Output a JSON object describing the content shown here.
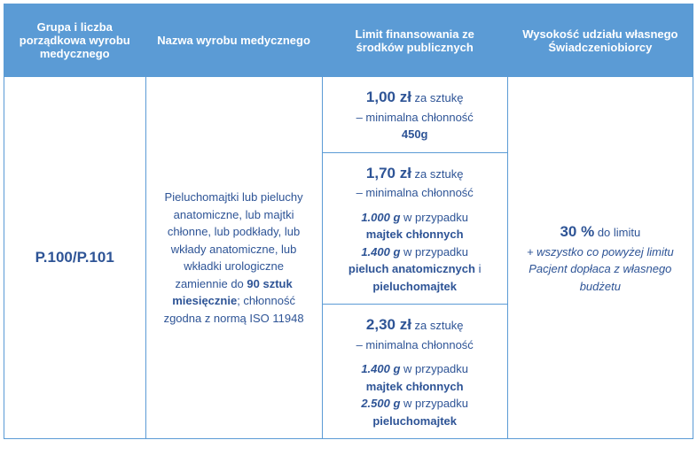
{
  "header": {
    "col1": "Grupa i liczba porządkowa wyrobu medycznego",
    "col2": "Nazwa wyrobu medycznego",
    "col3": "Limit finansowania ze środków publicznych",
    "col4": "Wysokość udziału własnego Świadczeniobiorcy"
  },
  "body": {
    "code": "P.100/P.101",
    "desc_pre": "Pieluchomajtki lub pieluchy anatomiczne, lub majtki chłonne, lub podkłady, lub wkłady anatomiczne, lub wkładki urologiczne zamiennie do ",
    "desc_bold": "90 sztuk miesięcznie",
    "desc_post": "; chłonność zgodna z normą ISO 11948",
    "limits": {
      "l1": {
        "price": "1,00 zł",
        "per": " za sztukę",
        "sub": "– minimalna chłonność",
        "weight": "450g"
      },
      "l2": {
        "price": "1,70 zł",
        "per": " za sztukę",
        "sub": "– minimalna chłonność",
        "w1": "1.000 g",
        "t1": " w przypadku ",
        "b1": "majtek chłonnych",
        "w2": "1.400 g",
        "t2": " w przypadku ",
        "b2a": "pieluch anatomicznych",
        "and": " i ",
        "b2b": "pieluchomajtek"
      },
      "l3": {
        "price": "2,30 zł",
        "per": " za sztukę",
        "sub": "– minimalna chłonność",
        "w1": "1.400 g",
        "t1": " w przypadku ",
        "b1": "majtek chłonnych",
        "w2": "2.500 g",
        "t2": " w przypadku ",
        "b2": "pieluchomajtek"
      }
    },
    "share": {
      "pct": "30 %",
      "pct_suffix": " do limitu",
      "note": "+ wszystko co powyżej limitu Pacjent dopłaca z własnego budżetu"
    }
  },
  "colors": {
    "header_bg": "#5b9bd5",
    "header_fg": "#ffffff",
    "border": "#5b9bd5",
    "text": "#2e5496"
  }
}
